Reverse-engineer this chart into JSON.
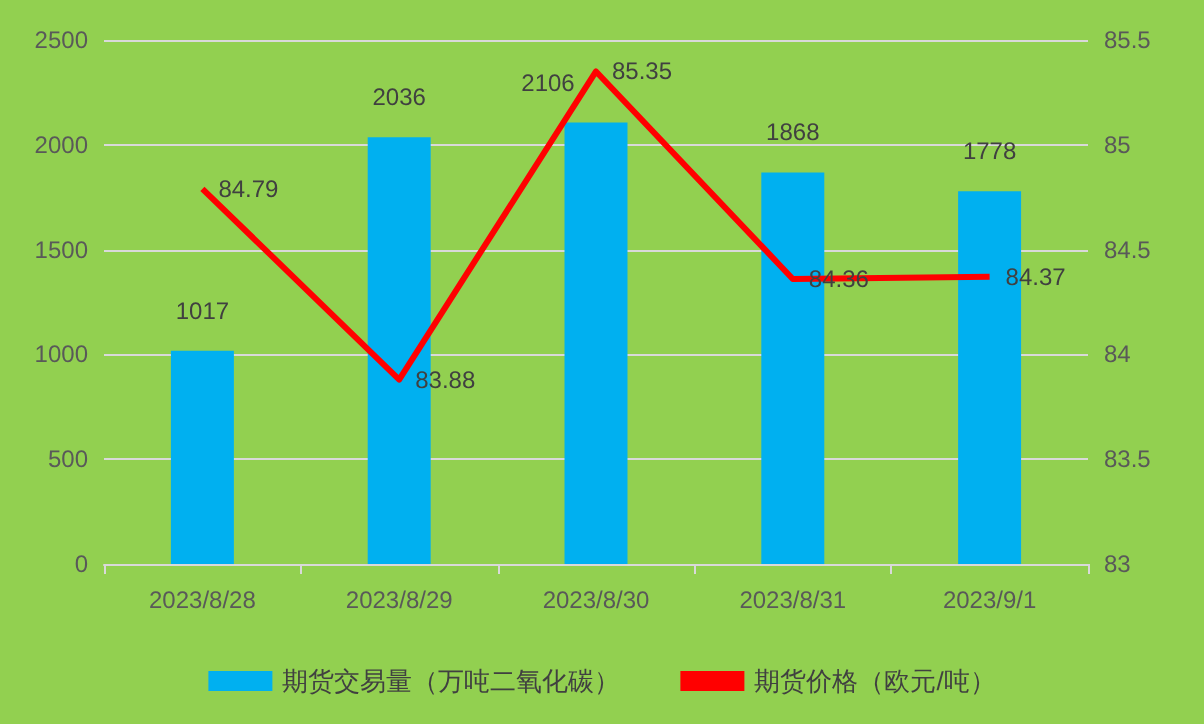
{
  "chart_data": {
    "type": "bar",
    "categories": [
      "2023/8/28",
      "2023/8/29",
      "2023/8/30",
      "2023/8/31",
      "2023/9/1"
    ],
    "series": [
      {
        "name": "期货交易量（万吨二氧化碳）",
        "color": "#00b0f0",
        "values": [
          1017,
          2036,
          2106,
          1868,
          1778
        ]
      },
      {
        "name": "期货价格（欧元/吨）",
        "type": "line",
        "axis": "y2",
        "color": "#ff0000",
        "values": [
          84.79,
          83.88,
          85.35,
          84.36,
          84.37
        ]
      }
    ],
    "ylim": [
      0,
      2500
    ],
    "yticks": [
      0,
      500,
      1000,
      1500,
      2000,
      2500
    ],
    "y2lim": [
      83,
      85.5
    ],
    "y2ticks": [
      83,
      83.5,
      84,
      84.5,
      85,
      85.5
    ],
    "grid": "y",
    "legend": "bottom",
    "data_labels": true,
    "marker": "none",
    "line_style": "solid"
  }
}
